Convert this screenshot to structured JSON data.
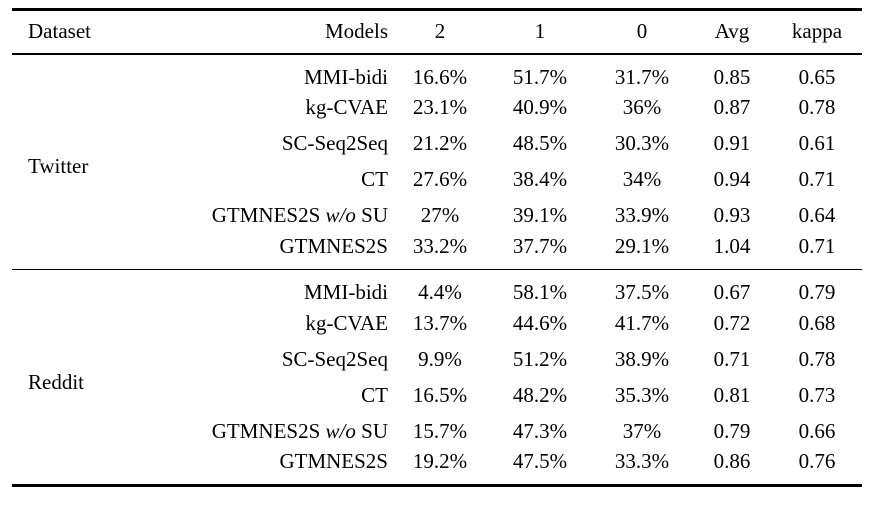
{
  "table": {
    "columns": [
      "Dataset",
      "Models",
      "2",
      "1",
      "0",
      "Avg",
      "kappa"
    ],
    "sections": [
      {
        "dataset": "Twitter",
        "rows": [
          {
            "model": "MMI-bidi",
            "model_italic": "",
            "model_post": "",
            "c2": "16.6%",
            "c1": "51.7%",
            "c0": "31.7%",
            "avg": "0.85",
            "kappa": "0.65"
          },
          {
            "model": "kg-CVAE",
            "model_italic": "",
            "model_post": "",
            "c2": "23.1%",
            "c1": "40.9%",
            "c0": "36%",
            "avg": "0.87",
            "kappa": "0.78"
          },
          {
            "model": "SC-Seq2Seq",
            "model_italic": "",
            "model_post": "",
            "c2": "21.2%",
            "c1": "48.5%",
            "c0": "30.3%",
            "avg": "0.91",
            "kappa": "0.61"
          },
          {
            "model": "CT",
            "model_italic": "",
            "model_post": "",
            "c2": "27.6%",
            "c1": "38.4%",
            "c0": "34%",
            "avg": "0.94",
            "kappa": "0.71"
          },
          {
            "model": "GTMNES2S ",
            "model_italic": "w/o",
            "model_post": " SU",
            "c2": "27%",
            "c1": "39.1%",
            "c0": "33.9%",
            "avg": "0.93",
            "kappa": "0.64"
          },
          {
            "model": "GTMNES2S",
            "model_italic": "",
            "model_post": "",
            "c2": "33.2%",
            "c1": "37.7%",
            "c0": "29.1%",
            "avg": "1.04",
            "kappa": "0.71"
          }
        ]
      },
      {
        "dataset": "Reddit",
        "rows": [
          {
            "model": "MMI-bidi",
            "model_italic": "",
            "model_post": "",
            "c2": "4.4%",
            "c1": "58.1%",
            "c0": "37.5%",
            "avg": "0.67",
            "kappa": "0.79"
          },
          {
            "model": "kg-CVAE",
            "model_italic": "",
            "model_post": "",
            "c2": "13.7%",
            "c1": "44.6%",
            "c0": "41.7%",
            "avg": "0.72",
            "kappa": "0.68"
          },
          {
            "model": "SC-Seq2Seq",
            "model_italic": "",
            "model_post": "",
            "c2": "9.9%",
            "c1": "51.2%",
            "c0": "38.9%",
            "avg": "0.71",
            "kappa": "0.78"
          },
          {
            "model": "CT",
            "model_italic": "",
            "model_post": "",
            "c2": "16.5%",
            "c1": "48.2%",
            "c0": "35.3%",
            "avg": "0.81",
            "kappa": "0.73"
          },
          {
            "model": "GTMNES2S ",
            "model_italic": "w/o",
            "model_post": " SU",
            "c2": "15.7%",
            "c1": "47.3%",
            "c0": "37%",
            "avg": "0.79",
            "kappa": "0.66"
          },
          {
            "model": "GTMNES2S",
            "model_italic": "",
            "model_post": "",
            "c2": "19.2%",
            "c1": "47.5%",
            "c0": "33.3%",
            "avg": "0.86",
            "kappa": "0.76"
          }
        ]
      }
    ]
  }
}
